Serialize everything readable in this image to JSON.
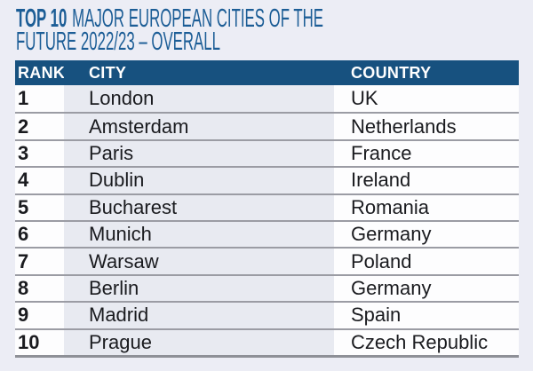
{
  "colors": {
    "page_bg": "#ecedf5",
    "title": "#1c5d96",
    "header_bg": "#17517f",
    "header_text": "#ffffff",
    "row_bg": "#fdfdfe",
    "city_col_bg": "#e8eaf1",
    "separator": "#9b9ca4",
    "bottom_line": "#8e9097",
    "text": "#1a1b1f"
  },
  "title": {
    "bold": "TOP 10",
    "line1_rest": "MAJOR EUROPEAN CITIES OF THE",
    "line2": "FUTURE 2022/23 – OVERALL"
  },
  "table": {
    "header": {
      "rank": "RANK",
      "city": "CITY",
      "country": "COUNTRY"
    },
    "rows": [
      {
        "rank": "1",
        "city": "London",
        "country": "UK"
      },
      {
        "rank": "2",
        "city": "Amsterdam",
        "country": "Netherlands"
      },
      {
        "rank": "3",
        "city": "Paris",
        "country": "France"
      },
      {
        "rank": "4",
        "city": "Dublin",
        "country": "Ireland"
      },
      {
        "rank": "5",
        "city": "Bucharest",
        "country": "Romania"
      },
      {
        "rank": "6",
        "city": "Munich",
        "country": "Germany"
      },
      {
        "rank": "7",
        "city": "Warsaw",
        "country": "Poland"
      },
      {
        "rank": "8",
        "city": "Berlin",
        "country": "Germany"
      },
      {
        "rank": "9",
        "city": "Madrid",
        "country": "Spain"
      },
      {
        "rank": "10",
        "city": "Prague",
        "country": "Czech Republic"
      }
    ]
  },
  "chart_data": {
    "type": "table",
    "title": "TOP 10 MAJOR EUROPEAN CITIES OF THE FUTURE 2022/23 – OVERALL",
    "columns": [
      "RANK",
      "CITY",
      "COUNTRY"
    ],
    "rows": [
      [
        1,
        "London",
        "UK"
      ],
      [
        2,
        "Amsterdam",
        "Netherlands"
      ],
      [
        3,
        "Paris",
        "France"
      ],
      [
        4,
        "Dublin",
        "Ireland"
      ],
      [
        5,
        "Bucharest",
        "Romania"
      ],
      [
        6,
        "Munich",
        "Germany"
      ],
      [
        7,
        "Warsaw",
        "Poland"
      ],
      [
        8,
        "Berlin",
        "Germany"
      ],
      [
        9,
        "Madrid",
        "Spain"
      ],
      [
        10,
        "Prague",
        "Czech Republic"
      ]
    ]
  }
}
